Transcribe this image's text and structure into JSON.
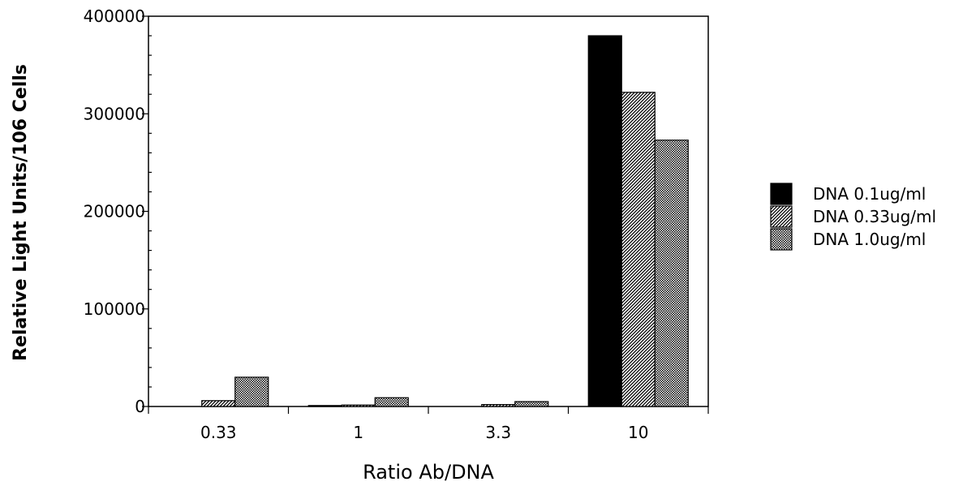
{
  "chart_data": {
    "type": "bar",
    "title": "",
    "xlabel": "Ratio Ab/DNA",
    "ylabel": "Relative Light Units/106 Cells",
    "categories": [
      "0.33",
      "1",
      "3.3",
      "10"
    ],
    "ylim": [
      0,
      400000
    ],
    "yticks": [
      "0",
      "100000",
      "200000",
      "300000",
      "400000"
    ],
    "grid": false,
    "legend_position": "right",
    "series": [
      {
        "name": "DNA 0.1ug/ml",
        "values": [
          0,
          1000,
          0,
          380000
        ],
        "pattern": "solid"
      },
      {
        "name": "DNA 0.33ug/ml",
        "values": [
          6000,
          1500,
          2000,
          322000
        ],
        "pattern": "hatch"
      },
      {
        "name": "DNA 1.0ug/ml",
        "values": [
          30000,
          9000,
          5000,
          273000
        ],
        "pattern": "dots"
      }
    ],
    "colors": {
      "bar_outline": "#000000",
      "solid": "#000000"
    }
  }
}
